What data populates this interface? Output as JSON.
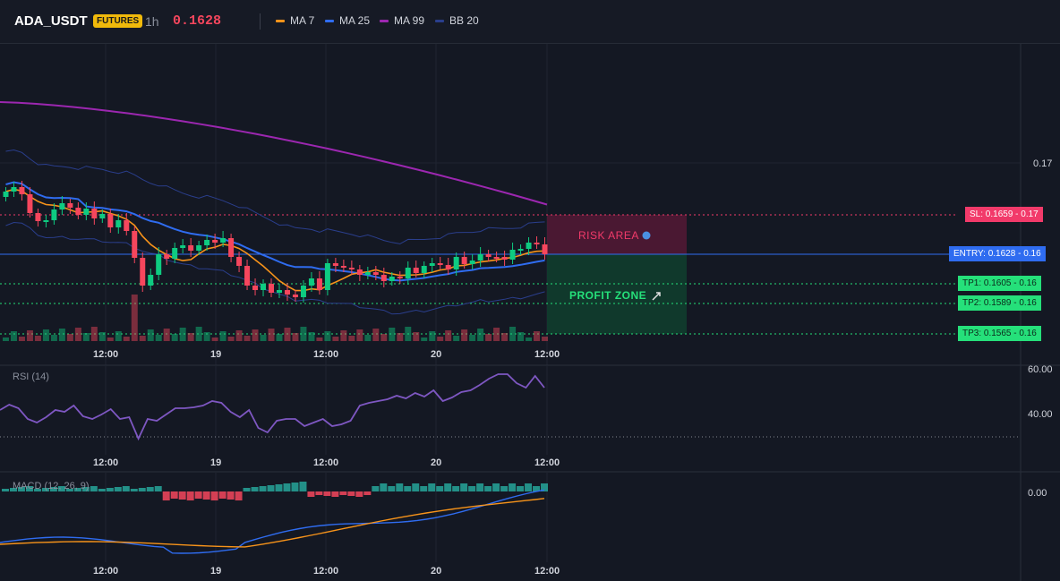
{
  "header": {
    "symbol": "ADA_USDT",
    "badge": "FUTURES",
    "timeframe": "1h",
    "price": "0.1628",
    "legend": [
      {
        "label": "MA 7",
        "color": "#f7931a"
      },
      {
        "label": "MA 25",
        "color": "#2f6cf0"
      },
      {
        "label": "MA 99",
        "color": "#9c27b0"
      },
      {
        "label": "BB 20",
        "color": "#2a3e8c"
      }
    ]
  },
  "main_axis": {
    "tick": "0.17"
  },
  "time_labels": [
    "12:00",
    "19",
    "12:00",
    "20",
    "12:00"
  ],
  "zones": {
    "risk": "RISK AREA",
    "profit": "PROFIT ZONE"
  },
  "levels": {
    "sl": {
      "label": "SL: 0.1659",
      "axis": "- 0.17",
      "color": "#f23a6a"
    },
    "entry": {
      "label": "ENTRY: 0.1628",
      "axis": "- 0.16",
      "color": "#2f6cf0"
    },
    "tp1": {
      "label": "TP1: 0.1605",
      "axis": "- 0.16",
      "color": "#25e07a"
    },
    "tp2": {
      "label": "TP2: 0.1589",
      "axis": "- 0.16",
      "color": "#25e07a"
    },
    "tp3": {
      "label": "TP3: 0.1565",
      "axis": "- 0.16",
      "color": "#25e07a"
    }
  },
  "rsi": {
    "title": "RSI (14)",
    "ticks": [
      "60.00",
      "40.00"
    ]
  },
  "macd": {
    "title": "MACD (12, 26, 9)",
    "tick": "0.00"
  },
  "colors": {
    "up": "#0ecb81",
    "down": "#f6465d",
    "ma7": "#f7931a",
    "ma25": "#2f6cf0",
    "ma99": "#9c27b0",
    "bb": "#2a3e8c",
    "rsi": "#7e57c2"
  }
}
